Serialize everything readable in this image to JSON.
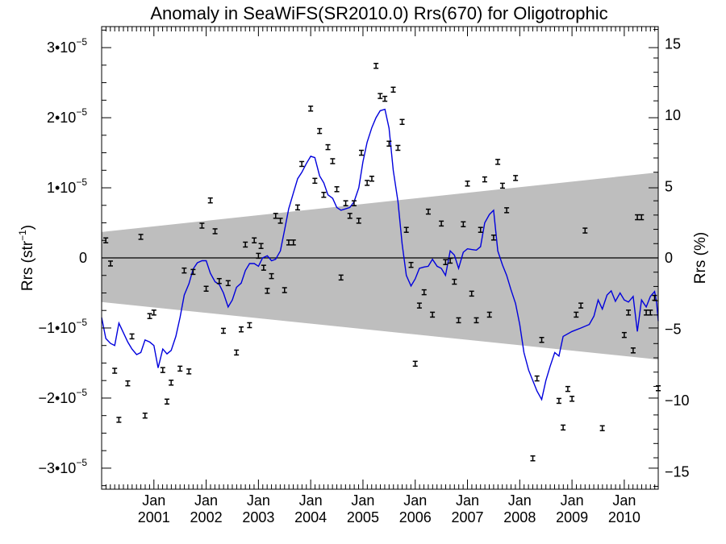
{
  "chart_data": {
    "type": "scatter",
    "title": "Anomaly in SeaWiFS(SR2010.0) Rrs(670) for Oligotrophic",
    "ylabel_left": {
      "base": "Rrs (str",
      "sup": "−1",
      "close": ")"
    },
    "ylabel_right": "Rrs (%)",
    "x_tick_labels": [
      {
        "month": "Jan",
        "year": "2001",
        "t": 2001.0
      },
      {
        "month": "Jan",
        "year": "2002",
        "t": 2002.0
      },
      {
        "month": "Jan",
        "year": "2003",
        "t": 2003.0
      },
      {
        "month": "Jan",
        "year": "2004",
        "t": 2004.0
      },
      {
        "month": "Jan",
        "year": "2005",
        "t": 2005.0
      },
      {
        "month": "Jan",
        "year": "2006",
        "t": 2006.0
      },
      {
        "month": "Jan",
        "year": "2007",
        "t": 2007.0
      },
      {
        "month": "Jan",
        "year": "2008",
        "t": 2008.0
      },
      {
        "month": "Jan",
        "year": "2009",
        "t": 2009.0
      },
      {
        "month": "Jan",
        "year": "2010",
        "t": 2010.0
      }
    ],
    "y_left_ticks": [
      {
        "value": 3e-05,
        "mant": "3•10",
        "exp": "−5"
      },
      {
        "value": 2e-05,
        "mant": "2•10",
        "exp": "−5"
      },
      {
        "value": 1e-05,
        "mant": "1•10",
        "exp": "−5"
      },
      {
        "value": 0,
        "mant": "0",
        "exp": ""
      },
      {
        "value": -1e-05,
        "mant": "−1•10",
        "exp": "−5"
      },
      {
        "value": -2e-05,
        "mant": "−2•10",
        "exp": "−5"
      },
      {
        "value": -3e-05,
        "mant": "−3•10",
        "exp": "−5"
      }
    ],
    "y_right_ticks": [
      "15",
      "10",
      "5",
      "0",
      "−5",
      "−10",
      "−15"
    ],
    "ylim_left": [
      -3.3e-05,
      3.3e-05
    ],
    "ylim_right": [
      -16.2,
      16.2
    ],
    "xlim": [
      2000.0,
      2010.65
    ],
    "gray_band": {
      "x": [
        2000.0,
        2010.65
      ],
      "upper": [
        3.7e-06,
        1.22e-05
      ],
      "lower": [
        -6.3e-06,
        -1.45e-05
      ]
    },
    "colors": {
      "line": "#0000dd",
      "band": "#bebebe",
      "points": "#000000",
      "zero_line": "#000000"
    },
    "points": [
      [
        2000.08,
        2.5e-06
      ],
      [
        2000.17,
        -8e-07
      ],
      [
        2000.25,
        -1.61e-05
      ],
      [
        2000.33,
        -2.31e-05
      ],
      [
        2000.5,
        -1.79e-05
      ],
      [
        2000.58,
        -1.12e-05
      ],
      [
        2000.75,
        3e-06
      ],
      [
        2000.83,
        -2.25e-05
      ],
      [
        2000.92,
        -8.3e-06
      ],
      [
        2001.0,
        -7.8e-06
      ],
      [
        2001.17,
        -1.6e-05
      ],
      [
        2001.25,
        -2.05e-05
      ],
      [
        2001.33,
        -1.78e-05
      ],
      [
        2001.5,
        -1.58e-05
      ],
      [
        2001.58,
        -1.8e-06
      ],
      [
        2001.67,
        -1.62e-05
      ],
      [
        2001.75,
        -2e-06
      ],
      [
        2001.92,
        4.6e-06
      ],
      [
        2002.0,
        -4.4e-06
      ],
      [
        2002.08,
        8.2e-06
      ],
      [
        2002.17,
        3.8e-06
      ],
      [
        2002.25,
        -3.3e-06
      ],
      [
        2002.42,
        -3.6e-06
      ],
      [
        2002.33,
        -1.04e-05
      ],
      [
        2002.58,
        -1.35e-05
      ],
      [
        2002.67,
        -1.02e-05
      ],
      [
        2002.75,
        1.9e-06
      ],
      [
        2002.83,
        -9.6e-06
      ],
      [
        2002.92,
        2.5e-06
      ],
      [
        2003.0,
        3e-07
      ],
      [
        2003.05,
        1.7e-06
      ],
      [
        2003.1,
        -1.4e-06
      ],
      [
        2003.17,
        -4.7e-06
      ],
      [
        2003.25,
        -2.6e-06
      ],
      [
        2003.33,
        6e-06
      ],
      [
        2003.42,
        5.3e-06
      ],
      [
        2003.5,
        -4.6e-06
      ],
      [
        2003.58,
        2.2e-06
      ],
      [
        2003.67,
        2.2e-06
      ],
      [
        2003.75,
        7.2e-06
      ],
      [
        2003.83,
        1.34e-05
      ],
      [
        2004.0,
        2.13e-05
      ],
      [
        2004.08,
        1.1e-05
      ],
      [
        2004.17,
        1.81e-05
      ],
      [
        2004.25,
        9e-06
      ],
      [
        2004.33,
        1.58e-05
      ],
      [
        2004.42,
        1.38e-05
      ],
      [
        2004.5,
        9.8e-06
      ],
      [
        2004.58,
        -2.8e-06
      ],
      [
        2004.67,
        7.8e-06
      ],
      [
        2004.75,
        6e-06
      ],
      [
        2004.83,
        7.8e-06
      ],
      [
        2004.92,
        5.3e-06
      ],
      [
        2004.97,
        1.5e-05
      ],
      [
        2005.08,
        1.07e-05
      ],
      [
        2005.17,
        1.13e-05
      ],
      [
        2005.25,
        2.74e-05
      ],
      [
        2005.33,
        2.31e-05
      ],
      [
        2005.42,
        2.27e-05
      ],
      [
        2005.5,
        1.63e-05
      ],
      [
        2005.58,
        2.4e-05
      ],
      [
        2005.67,
        1.57e-05
      ],
      [
        2005.75,
        1.94e-05
      ],
      [
        2005.83,
        4e-06
      ],
      [
        2005.92,
        -1e-06
      ],
      [
        2006.0,
        -1.51e-05
      ],
      [
        2006.08,
        -6.8e-06
      ],
      [
        2006.17,
        -4.9e-06
      ],
      [
        2006.25,
        6.6e-06
      ],
      [
        2006.33,
        -8.1e-06
      ],
      [
        2006.5,
        4.9e-06
      ],
      [
        2006.58,
        -6e-07
      ],
      [
        2006.67,
        -4e-07
      ],
      [
        2006.75,
        -3.4e-06
      ],
      [
        2006.83,
        -8.9e-06
      ],
      [
        2006.92,
        4.8e-06
      ],
      [
        2007.0,
        1.06e-05
      ],
      [
        2007.08,
        -5.1e-06
      ],
      [
        2007.17,
        -8.9e-06
      ],
      [
        2007.25,
        4e-06
      ],
      [
        2007.33,
        1.12e-05
      ],
      [
        2007.42,
        -8.1e-06
      ],
      [
        2007.5,
        2.9e-06
      ],
      [
        2007.58,
        1.37e-05
      ],
      [
        2007.67,
        1.03e-05
      ],
      [
        2007.75,
        6.8e-06
      ],
      [
        2007.92,
        1.14e-05
      ],
      [
        2008.25,
        -2.86e-05
      ],
      [
        2008.33,
        -1.72e-05
      ],
      [
        2008.42,
        -1.17e-05
      ],
      [
        2008.75,
        -2.04e-05
      ],
      [
        2008.83,
        -2.42e-05
      ],
      [
        2008.92,
        -1.87e-05
      ],
      [
        2009.0,
        -2.01e-05
      ],
      [
        2009.08,
        -8.1e-06
      ],
      [
        2009.17,
        -6.8e-06
      ],
      [
        2009.25,
        3.9e-06
      ],
      [
        2009.58,
        -2.43e-05
      ],
      [
        2010.0,
        -1.1e-05
      ],
      [
        2010.08,
        -7.8e-06
      ],
      [
        2010.17,
        -1.32e-05
      ],
      [
        2010.25,
        5.8e-06
      ],
      [
        2010.33,
        5.8e-06
      ],
      [
        2010.42,
        -7.8e-06
      ],
      [
        2010.5,
        -7.8e-06
      ],
      [
        2010.58,
        -5.7e-06
      ],
      [
        2010.65,
        -1.86e-05
      ]
    ],
    "smooth_line": [
      [
        2000.0,
        -8.5e-06
      ],
      [
        2000.08,
        -1.15e-05
      ],
      [
        2000.17,
        -1.22e-05
      ],
      [
        2000.25,
        -1.25e-05
      ],
      [
        2000.33,
        -9.3e-06
      ],
      [
        2000.5,
        -1.2e-05
      ],
      [
        2000.58,
        -1.3e-05
      ],
      [
        2000.67,
        -1.38e-05
      ],
      [
        2000.75,
        -1.35e-05
      ],
      [
        2000.83,
        -1.17e-05
      ],
      [
        2000.92,
        -1.2e-05
      ],
      [
        2001.0,
        -1.25e-05
      ],
      [
        2001.08,
        -1.57e-05
      ],
      [
        2001.17,
        -1.3e-05
      ],
      [
        2001.25,
        -1.37e-05
      ],
      [
        2001.33,
        -1.32e-05
      ],
      [
        2001.42,
        -1.12e-05
      ],
      [
        2001.5,
        -8.5e-06
      ],
      [
        2001.58,
        -5.3e-06
      ],
      [
        2001.67,
        -3.7e-06
      ],
      [
        2001.75,
        -1.6e-06
      ],
      [
        2001.83,
        -7e-07
      ],
      [
        2001.92,
        -4e-07
      ],
      [
        2002.0,
        -4e-07
      ],
      [
        2002.08,
        -2.2e-06
      ],
      [
        2002.17,
        -3.4e-06
      ],
      [
        2002.25,
        -3.8e-06
      ],
      [
        2002.33,
        -5e-06
      ],
      [
        2002.42,
        -7e-06
      ],
      [
        2002.5,
        -6e-06
      ],
      [
        2002.58,
        -4.2e-06
      ],
      [
        2002.67,
        -3.6e-06
      ],
      [
        2002.75,
        -1.8e-06
      ],
      [
        2002.83,
        -8e-07
      ],
      [
        2002.92,
        -8e-07
      ],
      [
        2003.0,
        -1.2e-06
      ],
      [
        2003.08,
        0
      ],
      [
        2003.17,
        3e-07
      ],
      [
        2003.25,
        -4e-07
      ],
      [
        2003.33,
        -2e-07
      ],
      [
        2003.42,
        1e-06
      ],
      [
        2003.5,
        4e-06
      ],
      [
        2003.58,
        7e-06
      ],
      [
        2003.67,
        9.3e-06
      ],
      [
        2003.75,
        1.13e-05
      ],
      [
        2003.83,
        1.22e-05
      ],
      [
        2003.92,
        1.35e-05
      ],
      [
        2004.0,
        1.45e-05
      ],
      [
        2004.08,
        1.43e-05
      ],
      [
        2004.17,
        1.17e-05
      ],
      [
        2004.25,
        1.07e-05
      ],
      [
        2004.33,
        9e-06
      ],
      [
        2004.42,
        8.5e-06
      ],
      [
        2004.5,
        7.2e-06
      ],
      [
        2004.58,
        6.8e-06
      ],
      [
        2004.67,
        7e-06
      ],
      [
        2004.75,
        7.2e-06
      ],
      [
        2004.83,
        8e-06
      ],
      [
        2004.92,
        1e-05
      ],
      [
        2005.0,
        1.37e-05
      ],
      [
        2005.08,
        1.65e-05
      ],
      [
        2005.17,
        1.86e-05
      ],
      [
        2005.25,
        2e-05
      ],
      [
        2005.33,
        2.1e-05
      ],
      [
        2005.42,
        2.12e-05
      ],
      [
        2005.5,
        1.85e-05
      ],
      [
        2005.58,
        1.25e-05
      ],
      [
        2005.67,
        8e-06
      ],
      [
        2005.75,
        2e-06
      ],
      [
        2005.83,
        -2.5e-06
      ],
      [
        2005.92,
        -4e-06
      ],
      [
        2006.0,
        -3e-06
      ],
      [
        2006.08,
        -1.5e-06
      ],
      [
        2006.17,
        -1.3e-06
      ],
      [
        2006.25,
        -1.2e-06
      ],
      [
        2006.33,
        -2e-07
      ],
      [
        2006.42,
        -1.2e-06
      ],
      [
        2006.5,
        -1.5e-06
      ],
      [
        2006.58,
        -2.5e-06
      ],
      [
        2006.67,
        1e-06
      ],
      [
        2006.75,
        4e-07
      ],
      [
        2006.83,
        -1.5e-06
      ],
      [
        2006.92,
        8e-07
      ],
      [
        2007.0,
        1.3e-06
      ],
      [
        2007.08,
        1.2e-06
      ],
      [
        2007.17,
        1.1e-06
      ],
      [
        2007.25,
        1.6e-06
      ],
      [
        2007.33,
        5e-06
      ],
      [
        2007.42,
        6.2e-06
      ],
      [
        2007.5,
        6.8e-06
      ],
      [
        2007.58,
        1e-06
      ],
      [
        2007.67,
        -1e-06
      ],
      [
        2007.75,
        -2.5e-06
      ],
      [
        2007.83,
        -4.5e-06
      ],
      [
        2007.92,
        -6.5e-06
      ],
      [
        2008.0,
        -9.5e-06
      ],
      [
        2008.08,
        -1.35e-05
      ],
      [
        2008.17,
        -1.6e-05
      ],
      [
        2008.33,
        -1.9e-05
      ],
      [
        2008.42,
        -2.02e-05
      ],
      [
        2008.5,
        -1.75e-05
      ],
      [
        2008.58,
        -1.55e-05
      ],
      [
        2008.67,
        -1.35e-05
      ],
      [
        2008.75,
        -1.4e-05
      ],
      [
        2008.83,
        -1.12e-05
      ],
      [
        2009.0,
        -1.05e-05
      ],
      [
        2009.17,
        -1e-05
      ],
      [
        2009.33,
        -9.5e-06
      ],
      [
        2009.42,
        -8.3e-06
      ],
      [
        2009.5,
        -6e-06
      ],
      [
        2009.58,
        -7.3e-06
      ],
      [
        2009.67,
        -5.3e-06
      ],
      [
        2009.75,
        -4.7e-06
      ],
      [
        2009.83,
        -6.2e-06
      ],
      [
        2009.92,
        -5e-06
      ],
      [
        2010.0,
        -6e-06
      ],
      [
        2010.08,
        -6.3e-06
      ],
      [
        2010.17,
        -5.5e-06
      ],
      [
        2010.25,
        -1.05e-05
      ],
      [
        2010.33,
        -6e-06
      ],
      [
        2010.42,
        -7e-06
      ],
      [
        2010.5,
        -5.5e-06
      ],
      [
        2010.58,
        -4.8e-06
      ],
      [
        2010.62,
        -6.5e-06
      ],
      [
        2010.65,
        -9e-06
      ]
    ]
  }
}
